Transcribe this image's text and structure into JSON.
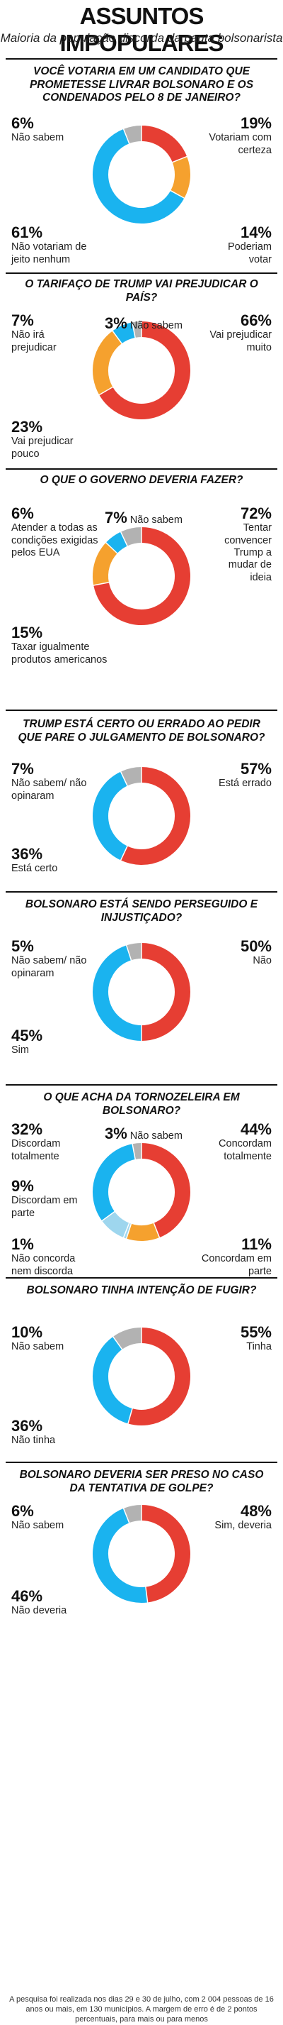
{
  "title": "ASSUNTOS IMPOPULARES",
  "subtitle": "Maioria da população discorda da pauta bolsonarista",
  "footnote": "A pesquisa foi realizada nos dias 29 e 30 de julho, com 2 004 pessoas de 16 anos ou mais, em 130 municípios. A margem de erro é de 2 pontos percentuais, para mais ou para menos",
  "colors": {
    "red": "#e63e33",
    "orange": "#f5a12e",
    "blue": "#1ab3ef",
    "gray": "#b2b2b2",
    "light_blue": "#9ed6ee"
  },
  "chart_data": [
    {
      "type": "pie",
      "title": "VOCÊ VOTARIA EM UM CANDIDATO QUE PROMETESSE LIVRAR BOLSONARO E OS CONDENADOS PELO 8 DE JANEIRO?",
      "slices": [
        {
          "label": "Votariam com certeza",
          "value": 19,
          "pct": "19%",
          "color": "#e63e33"
        },
        {
          "label": "Poderiam votar",
          "value": 14,
          "pct": "14%",
          "color": "#f5a12e"
        },
        {
          "label": "Não votariam de jeito nenhum",
          "value": 61,
          "pct": "61%",
          "color": "#1ab3ef"
        },
        {
          "label": "Não sabem",
          "value": 6,
          "pct": "6%",
          "color": "#b2b2b2"
        }
      ]
    },
    {
      "type": "pie",
      "title": "O TARIFAÇO DE TRUMP VAI PREJUDICAR O PAÍS?",
      "slices": [
        {
          "label": "Vai prejudicar muito",
          "value": 66,
          "pct": "66%",
          "color": "#e63e33"
        },
        {
          "label": "Vai prejudicar pouco",
          "value": 23,
          "pct": "23%",
          "color": "#f5a12e"
        },
        {
          "label": "Não irá prejudicar",
          "value": 7,
          "pct": "7%",
          "color": "#1ab3ef"
        },
        {
          "label": "Não sabem",
          "value": 3,
          "pct": "3%",
          "color": "#b2b2b2"
        }
      ]
    },
    {
      "type": "pie",
      "title": "O QUE O GOVERNO DEVERIA FAZER?",
      "slices": [
        {
          "label": "Tentar convencer Trump a mudar de ideia",
          "value": 72,
          "pct": "72%",
          "color": "#e63e33"
        },
        {
          "label": "Taxar igualmente produtos americanos",
          "value": 15,
          "pct": "15%",
          "color": "#f5a12e"
        },
        {
          "label": "Atender a todas as condições exigidas pelos EUA",
          "value": 6,
          "pct": "6%",
          "color": "#1ab3ef"
        },
        {
          "label": "Não sabem",
          "value": 7,
          "pct": "7%",
          "color": "#b2b2b2"
        }
      ]
    },
    {
      "type": "pie",
      "title": "TRUMP ESTÁ CERTO OU ERRADO AO PEDIR QUE PARE O JULGAMENTO DE BOLSONARO?",
      "slices": [
        {
          "label": "Está errado",
          "value": 57,
          "pct": "57%",
          "color": "#e63e33"
        },
        {
          "label": "Está certo",
          "value": 36,
          "pct": "36%",
          "color": "#1ab3ef"
        },
        {
          "label": "Não sabem/ não opinaram",
          "value": 7,
          "pct": "7%",
          "color": "#b2b2b2"
        }
      ]
    },
    {
      "type": "pie",
      "title": "BOLSONARO ESTÁ SENDO PERSEGUIDO E INJUSTIÇADO?",
      "slices": [
        {
          "label": "Não",
          "value": 50,
          "pct": "50%",
          "color": "#e63e33"
        },
        {
          "label": "Sim",
          "value": 45,
          "pct": "45%",
          "color": "#1ab3ef"
        },
        {
          "label": "Não sabem/ não opinaram",
          "value": 5,
          "pct": "5%",
          "color": "#b2b2b2"
        }
      ]
    },
    {
      "type": "pie",
      "title": "O QUE ACHA DA TORNOZELEIRA EM BOLSONARO?",
      "slices": [
        {
          "label": "Concordam totalmente",
          "value": 44,
          "pct": "44%",
          "color": "#e63e33"
        },
        {
          "label": "Concordam em parte",
          "value": 11,
          "pct": "11%",
          "color": "#f5a12e"
        },
        {
          "label": "Não concorda nem discorda",
          "value": 1,
          "pct": "1%",
          "color": "#9ed6ee"
        },
        {
          "label": "Discordam em parte",
          "value": 9,
          "pct": "9%",
          "color": "#9ed6ee"
        },
        {
          "label": "Discordam totalmente",
          "value": 32,
          "pct": "32%",
          "color": "#1ab3ef"
        },
        {
          "label": "Não sabem",
          "value": 3,
          "pct": "3%",
          "color": "#b2b2b2"
        }
      ]
    },
    {
      "type": "pie",
      "title": "BOLSONARO TINHA INTENÇÃO DE FUGIR?",
      "slices": [
        {
          "label": "Tinha",
          "value": 55,
          "pct": "55%",
          "color": "#e63e33"
        },
        {
          "label": "Não tinha",
          "value": 36,
          "pct": "36%",
          "color": "#1ab3ef"
        },
        {
          "label": "Não sabem",
          "value": 10,
          "pct": "10%",
          "color": "#b2b2b2"
        }
      ]
    },
    {
      "type": "pie",
      "title": "BOLSONARO DEVERIA SER PRESO NO CASO DA TENTATIVA DE GOLPE?",
      "slices": [
        {
          "label": "Sim, deveria",
          "value": 48,
          "pct": "48%",
          "color": "#e63e33"
        },
        {
          "label": "Não deveria",
          "value": 46,
          "pct": "46%",
          "color": "#1ab3ef"
        },
        {
          "label": "Não sabem",
          "value": 6,
          "pct": "6%",
          "color": "#b2b2b2"
        }
      ]
    }
  ]
}
